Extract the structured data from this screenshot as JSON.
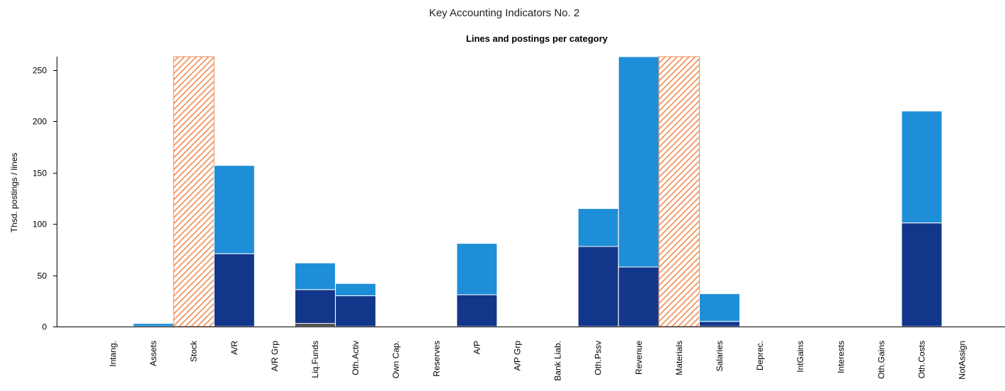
{
  "chart_data": {
    "type": "bar",
    "stacked": true,
    "title": "Key Accounting Indicators No. 2",
    "subtitle": "Lines and postings per category",
    "ylabel": "Thsd. postings / lines",
    "xlabel": "",
    "ylim": [
      0,
      263
    ],
    "yticks": [
      0,
      50,
      100,
      150,
      200,
      250
    ],
    "grid": false,
    "legend": "none",
    "categories": [
      "Intang.",
      "Assets",
      "Stock",
      "A/R",
      "A/R Grp",
      "Liq.Funds",
      "Oth.Activ",
      "Own Cap.",
      "Reserves",
      "A/P",
      "A/P Grp",
      "Bank Liab.",
      "Oth.Pssv",
      "Revenue",
      "Materials",
      "Salaries",
      "Deprec.",
      "IntGains",
      "Interests",
      "Oth.Gains",
      "Oth.Costs",
      "NotAssign"
    ],
    "series": [
      {
        "color": "#404040",
        "values": [
          0,
          0,
          0,
          0,
          0,
          3,
          0,
          0,
          0,
          0,
          0,
          0,
          0,
          0,
          0,
          0,
          0,
          0,
          0,
          0,
          0,
          0
        ]
      },
      {
        "color": "#12368a",
        "values": [
          0,
          0,
          0,
          71,
          0,
          33,
          30,
          0,
          0,
          31,
          0,
          0,
          78,
          58,
          0,
          5,
          0,
          0,
          0,
          0,
          101,
          0
        ]
      },
      {
        "color": "#1f8ed8",
        "values": [
          0,
          3,
          0,
          86,
          0,
          26,
          12,
          0,
          0,
          50,
          0,
          0,
          37,
          205,
          0,
          27,
          0,
          0,
          0,
          0,
          109,
          0
        ]
      }
    ],
    "out_of_range": {
      "color": "#f08a50",
      "categories": [
        "Stock",
        "Materials"
      ]
    }
  }
}
